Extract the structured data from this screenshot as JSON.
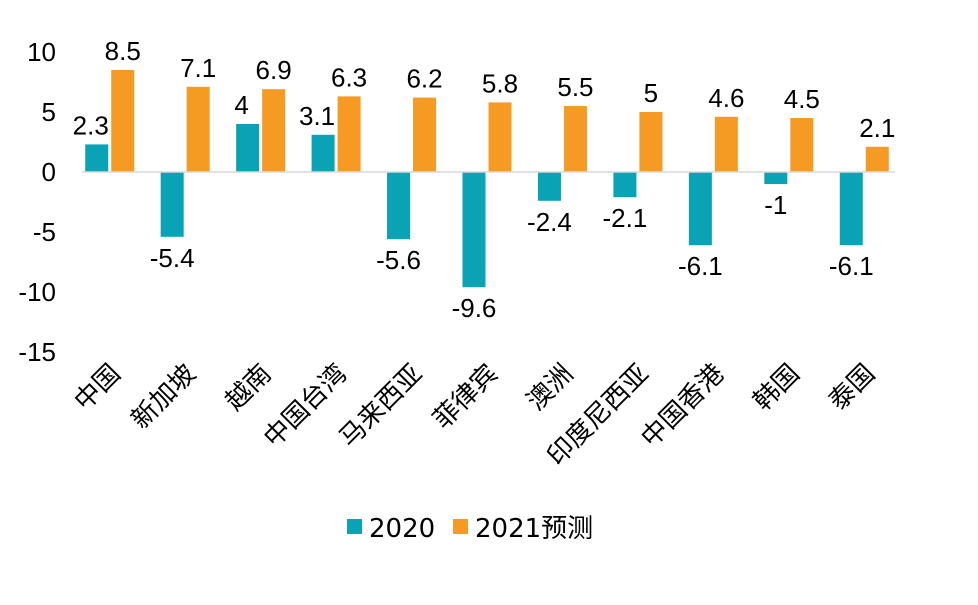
{
  "chart_data": {
    "type": "bar",
    "categories": [
      "中国",
      "新加坡",
      "越南",
      "中国台湾",
      "马来西亚",
      "菲律宾",
      "澳洲",
      "印度尼西亚",
      "中国香港",
      "韩国",
      "泰国"
    ],
    "series": [
      {
        "name": "2020",
        "values": [
          2.3,
          -5.4,
          4,
          3.1,
          -5.6,
          -9.6,
          -2.4,
          -2.1,
          -6.1,
          -1,
          -6.1
        ],
        "labels": [
          "2.3",
          "-5.4",
          "4",
          "3.1",
          "-5.6",
          "-9.6",
          "-2.4",
          "-2.1",
          "-6.1",
          "-1",
          "-6.1"
        ],
        "color": "#0aa3b5"
      },
      {
        "name": "2021预测",
        "values": [
          8.5,
          7.1,
          6.9,
          6.3,
          6.2,
          5.8,
          5.5,
          5,
          4.6,
          4.5,
          2.1
        ],
        "labels": [
          "8.5",
          "7.1",
          "6.9",
          "6.3",
          "6.2",
          "5.8",
          "5.5",
          "5",
          "4.6",
          "4.5",
          "2.1"
        ],
        "color": "#f59b23"
      }
    ],
    "yticks": [
      10,
      5,
      0,
      -5,
      -10,
      -15
    ],
    "ytick_labels": [
      "10",
      "5",
      "0",
      "-5",
      "-10",
      "-15"
    ],
    "ylim": [
      -15,
      10
    ],
    "grid": false,
    "legend_position": "bottom-center",
    "title": "",
    "xlabel": "",
    "ylabel": ""
  }
}
